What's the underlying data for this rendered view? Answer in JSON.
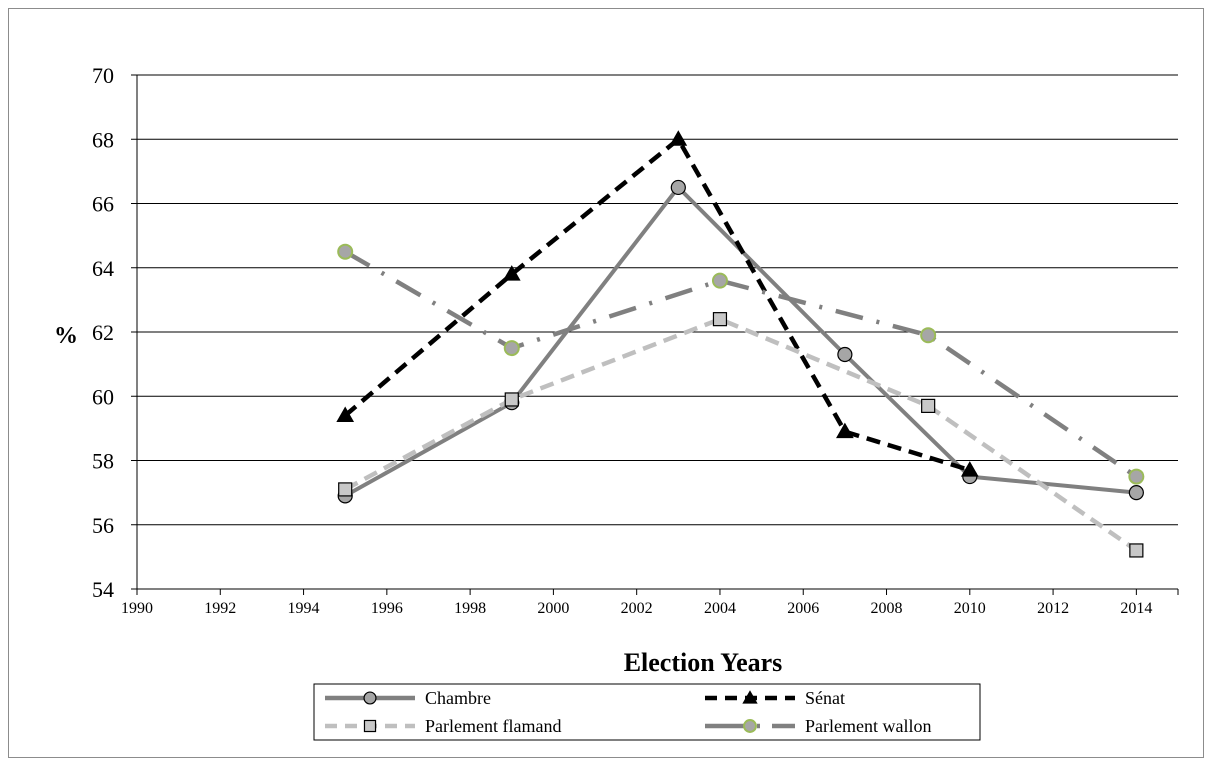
{
  "chart_data": {
    "type": "line",
    "title": "",
    "xlabel": "Election Years",
    "ylabel": "%",
    "xlim": [
      1990,
      2015
    ],
    "ylim": [
      54,
      70
    ],
    "x_ticks": [
      1990,
      1992,
      1994,
      1996,
      1998,
      2000,
      2002,
      2004,
      2006,
      2008,
      2010,
      2012,
      2014
    ],
    "y_ticks": [
      54,
      56,
      58,
      60,
      62,
      64,
      66,
      68,
      70
    ],
    "grid": "horizontal",
    "legend_position": "bottom",
    "series": [
      {
        "name": "Chambre",
        "color": "#808080",
        "line_style": "solid",
        "marker": "circle",
        "marker_fill": "#a6a6a6",
        "points": [
          [
            1995,
            56.9
          ],
          [
            1999,
            59.8
          ],
          [
            2003,
            66.5
          ],
          [
            2007,
            61.3
          ],
          [
            2010,
            57.5
          ],
          [
            2014,
            57.0
          ]
        ]
      },
      {
        "name": "Sénat",
        "color": "#000000",
        "line_style": "dashed",
        "marker": "triangle",
        "marker_fill": "#000000",
        "points": [
          [
            1995,
            59.4
          ],
          [
            1999,
            63.8
          ],
          [
            2003,
            68.0
          ],
          [
            2007,
            58.9
          ],
          [
            2010,
            57.7
          ]
        ]
      },
      {
        "name": "Parlement flamand",
        "color": "#bfbfbf",
        "line_style": "dashed",
        "marker": "square",
        "marker_fill": "#c8c8c8",
        "points": [
          [
            1995,
            57.1
          ],
          [
            1999,
            59.9
          ],
          [
            2004,
            62.4
          ],
          [
            2009,
            59.7
          ],
          [
            2014,
            55.2
          ]
        ]
      },
      {
        "name": "Parlement wallon",
        "color": "#808080",
        "line_style": "dash-dot",
        "marker": "circle",
        "marker_fill": "#a6a6a6",
        "marker_edge": "#9bbb59",
        "points": [
          [
            1995,
            64.5
          ],
          [
            1999,
            61.5
          ],
          [
            2004,
            63.6
          ],
          [
            2009,
            61.9
          ],
          [
            2014,
            57.5
          ]
        ]
      }
    ]
  }
}
